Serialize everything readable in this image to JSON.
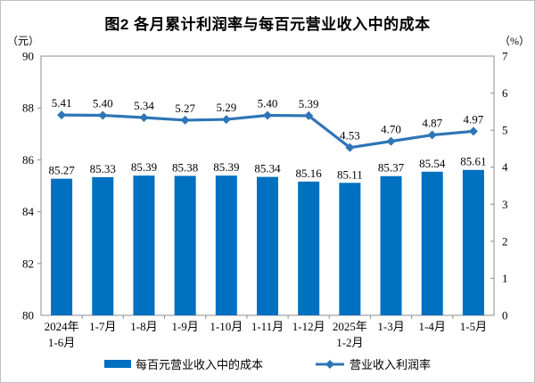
{
  "chart_data": {
    "type": "bar",
    "combo": "bar+line",
    "title": "图2 各月累计利润率与每百元营业收入中的成本",
    "categories": [
      [
        "2024年",
        "1-6月"
      ],
      [
        "1-7月"
      ],
      [
        "1-8月"
      ],
      [
        "1-9月"
      ],
      [
        "1-10月"
      ],
      [
        "1-11月"
      ],
      [
        "1-12月"
      ],
      [
        "2025年",
        "1-2月"
      ],
      [
        "1-3月"
      ],
      [
        "1-4月"
      ],
      [
        "1-5月"
      ]
    ],
    "series": [
      {
        "name": "每百元营业收入中的成本",
        "type": "bar",
        "axis": "left",
        "color": "#0070C0",
        "values": [
          85.27,
          85.33,
          85.39,
          85.38,
          85.39,
          85.34,
          85.16,
          85.11,
          85.37,
          85.54,
          85.61
        ]
      },
      {
        "name": "营业收入利润率",
        "type": "line",
        "axis": "right",
        "color": "#2E75B6",
        "values": [
          5.41,
          5.4,
          5.34,
          5.27,
          5.29,
          5.4,
          5.39,
          4.53,
          4.7,
          4.87,
          4.97
        ]
      }
    ],
    "value_labels": {
      "bar": [
        "85.27",
        "85.33",
        "85.39",
        "85.38",
        "85.39",
        "85.34",
        "85.16",
        "85.11",
        "85.37",
        "85.54",
        "85.61"
      ],
      "line": [
        "5.41",
        "5.40",
        "5.34",
        "5.27",
        "5.29",
        "5.40",
        "5.39",
        "4.53",
        "4.70",
        "4.87",
        "4.97"
      ]
    },
    "left_axis": {
      "unit": "（元）",
      "min": 80,
      "max": 90,
      "tick_step": 2,
      "ticks": [
        "90",
        "88",
        "86",
        "84",
        "82",
        "80"
      ]
    },
    "right_axis": {
      "unit": "（%）",
      "min": 0,
      "max": 7,
      "tick_step": 1,
      "ticks": [
        "7",
        "6",
        "5",
        "4",
        "3",
        "2",
        "1",
        "0"
      ]
    },
    "grid": false,
    "legend_position": "bottom",
    "frame_color": "#8c8c8c",
    "text_color": "#000000"
  }
}
